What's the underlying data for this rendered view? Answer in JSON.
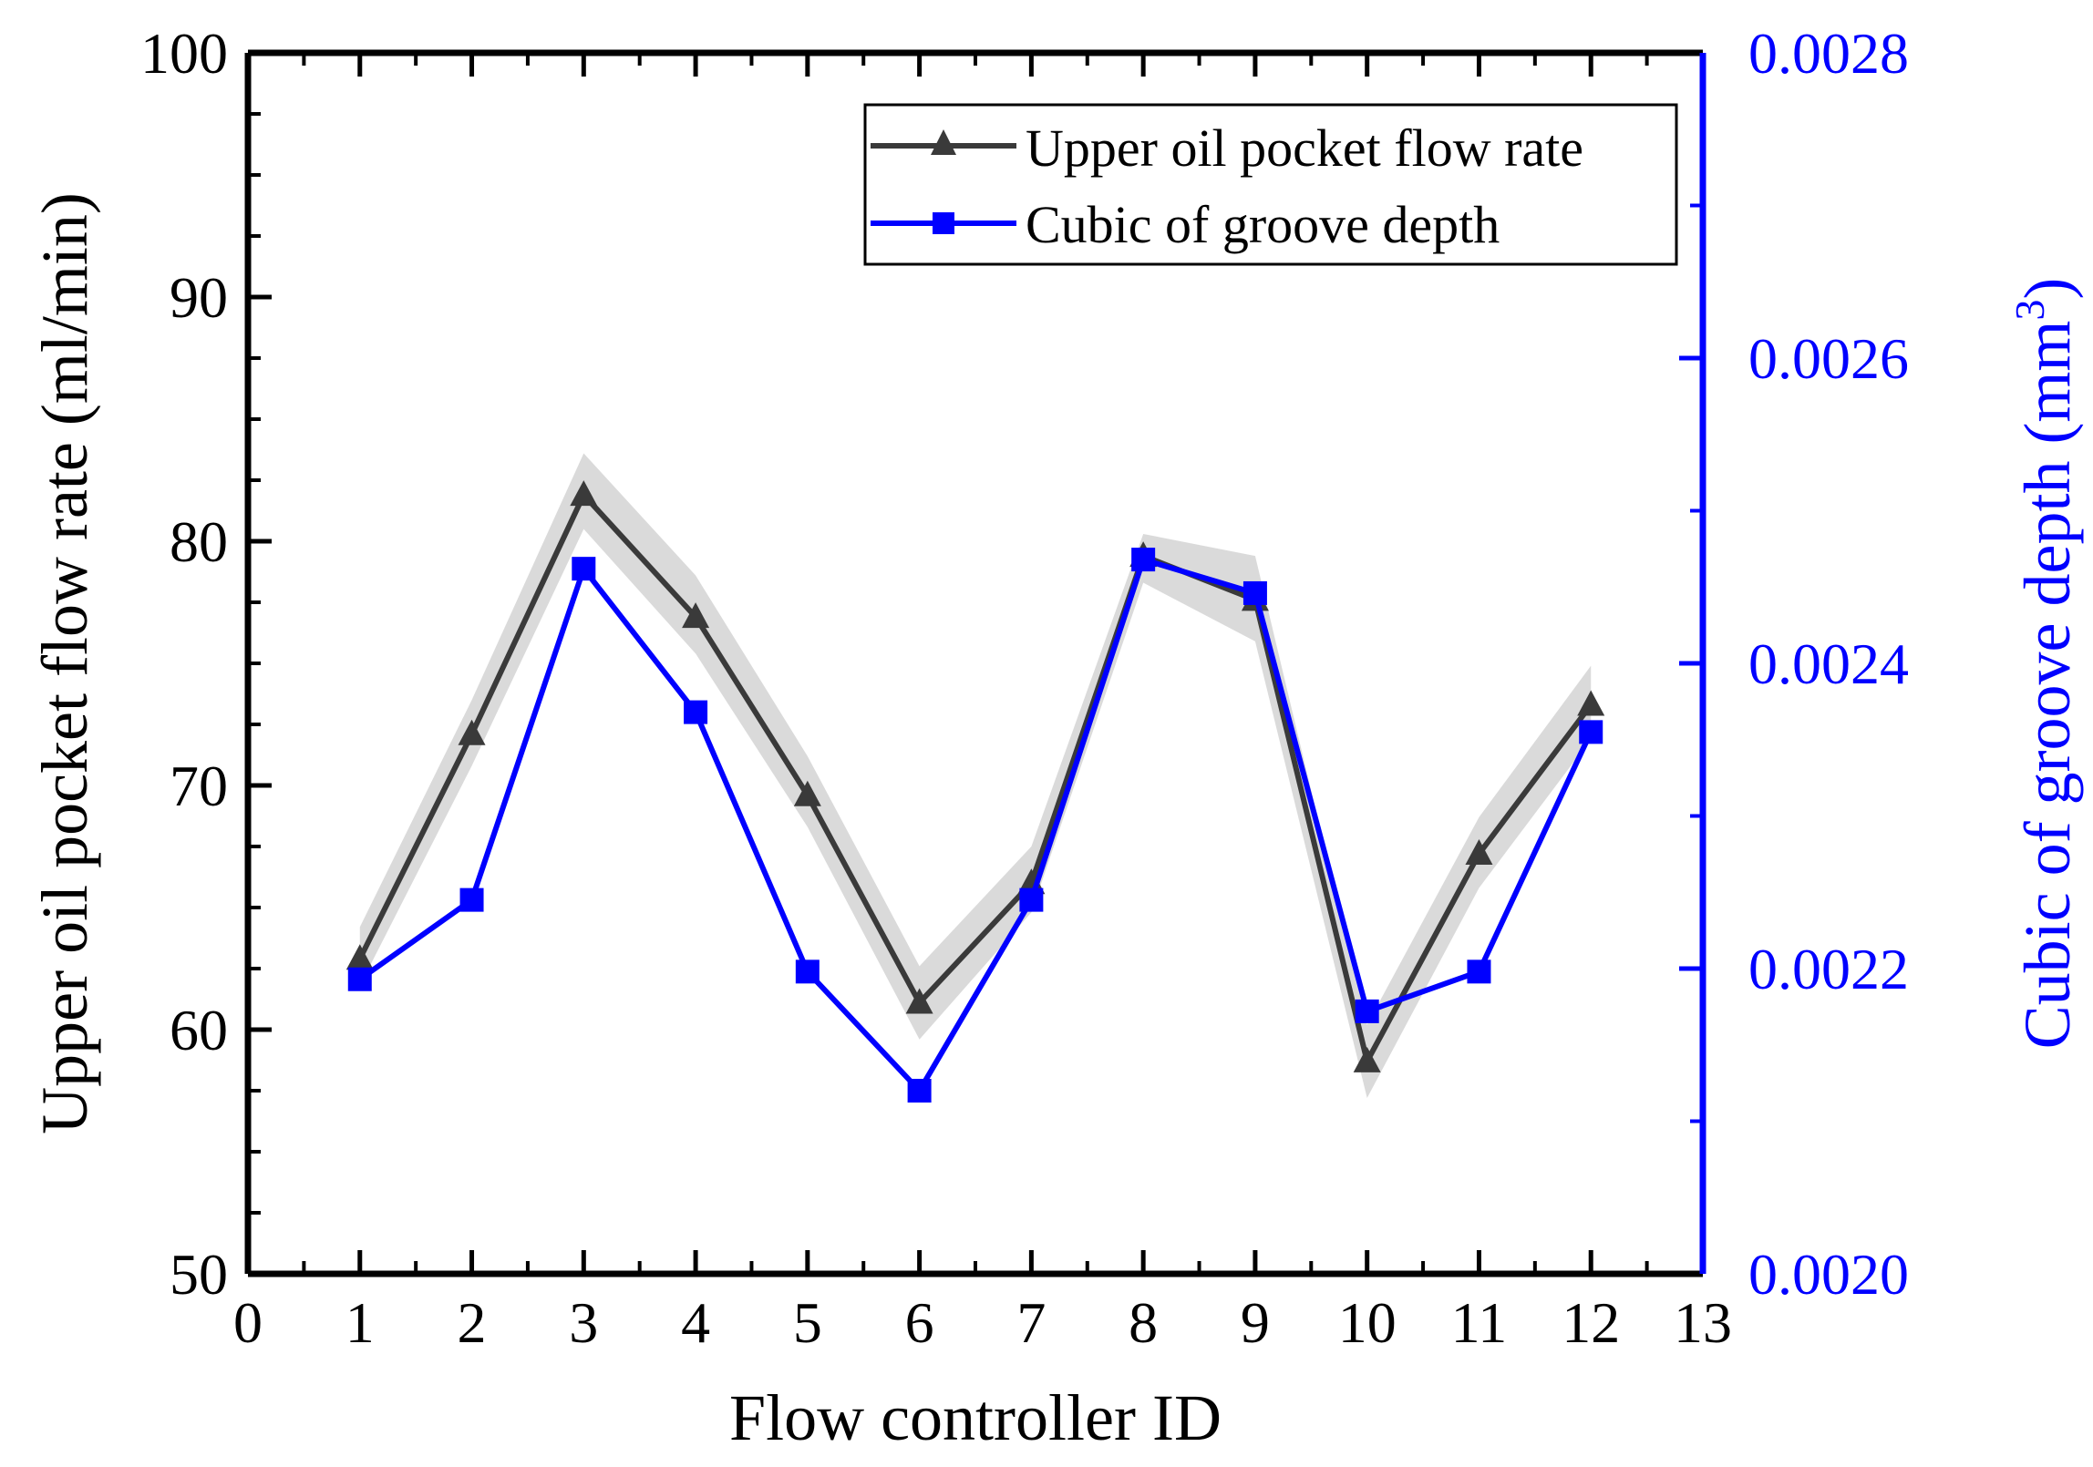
{
  "chart_data": {
    "type": "line",
    "title": "",
    "xlabel": "Flow controller ID",
    "ylabel": "Upper oil pocket flow rate (ml/min)",
    "y2label_base": "Cubic of groove depth (mm",
    "y2label_sup": "3",
    "y2label_close": ")",
    "xlim": [
      0,
      13
    ],
    "ylim": [
      50,
      100
    ],
    "y2lim": [
      0.002,
      0.0028
    ],
    "x_ticks": [
      "0",
      "1",
      "2",
      "3",
      "4",
      "5",
      "6",
      "7",
      "8",
      "9",
      "10",
      "11",
      "12",
      "13"
    ],
    "y_ticks": [
      "50",
      "60",
      "70",
      "80",
      "90",
      "100"
    ],
    "y2_ticks": [
      "0.0020",
      "0.0022",
      "0.0024",
      "0.0026",
      "0.0028"
    ],
    "x": [
      1,
      2,
      3,
      4,
      5,
      6,
      7,
      8,
      9,
      10,
      11,
      12
    ],
    "series": [
      {
        "name": "Upper oil pocket flow rate",
        "axis": "left",
        "color": "#3a3a3a",
        "marker": "triangle",
        "values": [
          62.9,
          72.1,
          81.9,
          76.9,
          69.6,
          61.1,
          66.0,
          79.4,
          77.6,
          58.7,
          67.2,
          73.3
        ],
        "band_upper": [
          64.2,
          73.5,
          83.6,
          78.6,
          71.2,
          62.6,
          67.5,
          80.3,
          79.4,
          60.2,
          68.7,
          74.9
        ],
        "band_lower": [
          61.8,
          70.8,
          80.5,
          75.4,
          68.3,
          59.6,
          64.8,
          78.3,
          75.9,
          57.2,
          65.8,
          71.9
        ]
      },
      {
        "name": "Cubic of groove depth",
        "axis": "right",
        "color": "#0000ff",
        "marker": "square",
        "values": [
          0.002193,
          0.002245,
          0.002462,
          0.002368,
          0.002198,
          0.00212,
          0.002245,
          0.002468,
          0.002446,
          0.002172,
          0.002198,
          0.002355
        ]
      }
    ],
    "legend": {
      "position": "top-right",
      "entries": [
        "Upper oil pocket flow rate",
        "Cubic of groove depth"
      ]
    }
  }
}
